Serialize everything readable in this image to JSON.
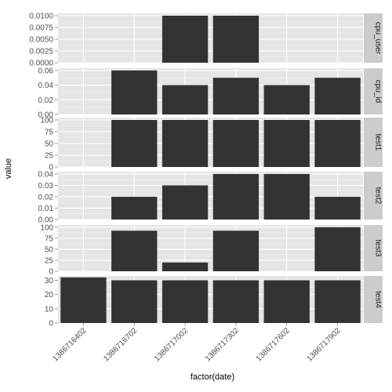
{
  "chart_data": {
    "type": "bar",
    "xlabel": "factor(date)",
    "ylabel": "value",
    "categories": [
      "1386716402",
      "1386716702",
      "1386717002",
      "1386717302",
      "1386717602",
      "1386717902"
    ],
    "panels": [
      {
        "name": "cpu_user",
        "ylim": [
          0,
          0.0105
        ],
        "ticks": [
          "0.0000",
          "0.0025",
          "0.0050",
          "0.0075",
          "0.0100"
        ],
        "tick_values": [
          0,
          0.0025,
          0.005,
          0.0075,
          0.01
        ],
        "values": [
          null,
          null,
          0.01,
          0.01,
          null,
          null
        ]
      },
      {
        "name": "cpu_id",
        "ylim": [
          0,
          0.063
        ],
        "ticks": [
          "0.00",
          "0.02",
          "0.04",
          "0.06"
        ],
        "tick_values": [
          0,
          0.02,
          0.04,
          0.06
        ],
        "values": [
          null,
          0.06,
          0.04,
          0.05,
          0.04,
          0.05
        ]
      },
      {
        "name": "test1",
        "ylim": [
          0,
          105
        ],
        "ticks": [
          "0",
          "25",
          "50",
          "75",
          "100"
        ],
        "tick_values": [
          0,
          25,
          50,
          75,
          100
        ],
        "values": [
          null,
          100,
          100,
          100,
          100,
          100
        ]
      },
      {
        "name": "test2",
        "ylim": [
          0,
          0.042
        ],
        "ticks": [
          "0.00",
          "0.01",
          "0.02",
          "0.03",
          "0.04"
        ],
        "tick_values": [
          0,
          0.01,
          0.02,
          0.03,
          0.04
        ],
        "values": [
          null,
          0.02,
          0.03,
          0.04,
          0.04,
          0.02
        ]
      },
      {
        "name": "test3",
        "ylim": [
          0,
          105
        ],
        "ticks": [
          "0",
          "25",
          "50",
          "75",
          "100"
        ],
        "tick_values": [
          0,
          25,
          50,
          75,
          100
        ],
        "values": [
          null,
          92,
          20,
          92,
          null,
          100
        ]
      },
      {
        "name": "test4",
        "ylim": [
          0,
          33
        ],
        "ticks": [
          "0",
          "10",
          "20",
          "30"
        ],
        "tick_values": [
          0,
          10,
          20,
          30
        ],
        "values": [
          32,
          30,
          30,
          30,
          30,
          30
        ]
      }
    ],
    "grid": true,
    "legend": "none",
    "colors": {
      "bar": "#333333",
      "panel_bg": "#e5e5e5",
      "grid_major": "#ffffff",
      "grid_minor": "#f2f2f2",
      "strip_bg": "#cccccc"
    }
  }
}
